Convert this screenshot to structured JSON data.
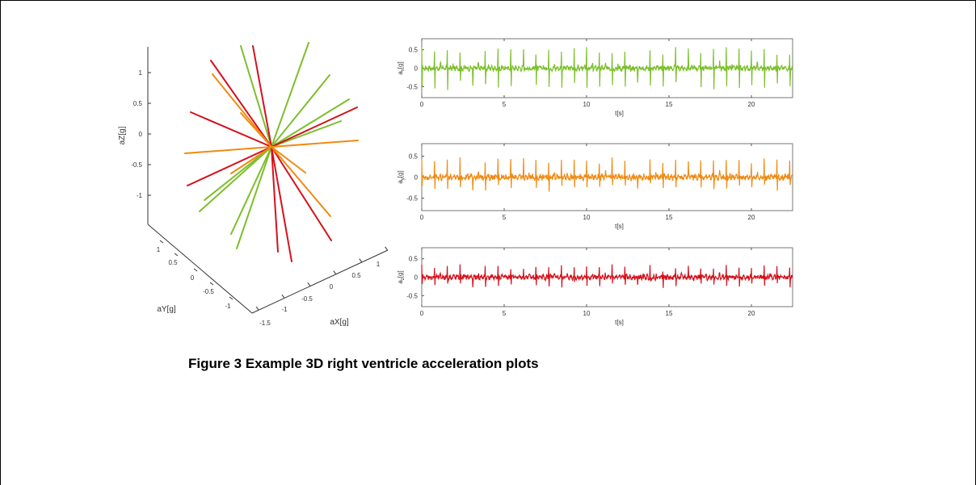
{
  "caption": "Figure 3 Example 3D right ventricle acceleration plots",
  "chart_data": [
    {
      "type": "line3d",
      "axes": {
        "x": {
          "label": "aX[g]",
          "ticks": [
            "-1.5",
            "-1",
            "-0.5",
            "0",
            "0.5",
            "1"
          ]
        },
        "y": {
          "label": "aY[g]",
          "ticks": [
            "1",
            "0.5",
            "0",
            "-0.5",
            "-1"
          ]
        },
        "z": {
          "label": "aZ[g]",
          "ticks": [
            "1",
            "0.5",
            "0",
            "-0.5",
            "-1"
          ]
        }
      },
      "colors": {
        "ax": "#7cbf2b",
        "ay": "#f08a12",
        "az": "#d4111b"
      }
    },
    {
      "type": "line",
      "ylabel": "a",
      "ylabel_sub": "x",
      "ylabel_unit": "[g]",
      "xlabel": "t[s]",
      "xlim": [
        0,
        22.5
      ],
      "ylim": [
        -0.8,
        0.8
      ],
      "xticks": [
        "0",
        "5",
        "10",
        "15",
        "20"
      ],
      "yticks": [
        "0.5",
        "0",
        "-0.5"
      ],
      "beats_per_sec": 1.3,
      "peak": 0.55,
      "trough": -0.55,
      "color": "#7cbf2b"
    },
    {
      "type": "line",
      "ylabel": "a",
      "ylabel_sub": "y",
      "ylabel_unit": "[g]",
      "xlabel": "t[s]",
      "xlim": [
        0,
        22.5
      ],
      "ylim": [
        -0.8,
        0.8
      ],
      "xticks": [
        "0",
        "5",
        "10",
        "15",
        "20"
      ],
      "yticks": [
        "0.5",
        "0",
        "-0.5"
      ],
      "beats_per_sec": 1.3,
      "peak": 0.45,
      "trough": -0.3,
      "color": "#f08a12"
    },
    {
      "type": "line",
      "ylabel": "a",
      "ylabel_sub": "z",
      "ylabel_unit": "[g]",
      "xlabel": "t[s]",
      "xlim": [
        0,
        22.5
      ],
      "ylim": [
        -0.8,
        0.8
      ],
      "xticks": [
        "0",
        "5",
        "10",
        "15",
        "20"
      ],
      "yticks": [
        "0.5",
        "0",
        "-0.5"
      ],
      "beats_per_sec": 1.3,
      "peak": 0.3,
      "trough": -0.25,
      "color": "#d4111b"
    }
  ]
}
